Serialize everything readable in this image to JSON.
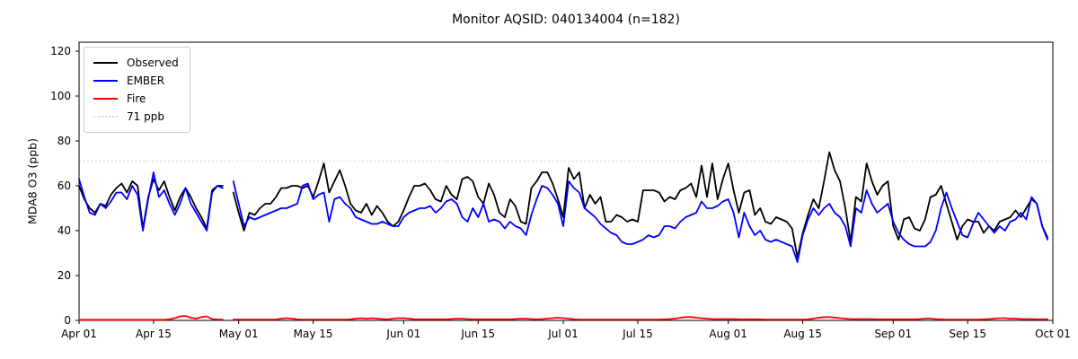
{
  "chart_data": {
    "type": "line",
    "title": "Monitor AQSID: 040134004 (n=182)",
    "xlabel": "",
    "ylabel": "MDA8 O3 (ppb)",
    "ylim": [
      0,
      124
    ],
    "yticks": [
      0,
      20,
      40,
      60,
      80,
      100,
      120
    ],
    "x_days_total": 183,
    "x_start_label": "Apr 01",
    "x_end_label": "Oct 01",
    "xticks": [
      {
        "day": 0,
        "label": "Apr 01"
      },
      {
        "day": 14,
        "label": "Apr 15"
      },
      {
        "day": 30,
        "label": "May 01"
      },
      {
        "day": 44,
        "label": "May 15"
      },
      {
        "day": 61,
        "label": "Jun 01"
      },
      {
        "day": 75,
        "label": "Jun 15"
      },
      {
        "day": 91,
        "label": "Jul 01"
      },
      {
        "day": 105,
        "label": "Jul 15"
      },
      {
        "day": 122,
        "label": "Aug 01"
      },
      {
        "day": 136,
        "label": "Aug 15"
      },
      {
        "day": 153,
        "label": "Sep 01"
      },
      {
        "day": 167,
        "label": "Sep 15"
      },
      {
        "day": 183,
        "label": "Oct 01"
      }
    ],
    "threshold": {
      "value": 71,
      "label": "71 ppb",
      "color": "#d8d8d8",
      "style": "dotted"
    },
    "legend_items": [
      {
        "label": "Observed",
        "color": "#000000",
        "style": "solid"
      },
      {
        "label": "EMBER",
        "color": "#0000ff",
        "style": "solid"
      },
      {
        "label": "Fire",
        "color": "#ff0000",
        "style": "solid"
      },
      {
        "label": "71 ppb",
        "color": "#d8d8d8",
        "style": "dotted"
      }
    ],
    "grid": false,
    "legend_position": "upper left",
    "note_gap": "no data on Apr 29",
    "series": [
      {
        "name": "Observed",
        "color": "#000000",
        "values": [
          60,
          54,
          50,
          48,
          52,
          51,
          56,
          59,
          61,
          57,
          62,
          60,
          41,
          55,
          63,
          58,
          62,
          55,
          49,
          55,
          59,
          55,
          50,
          46,
          41,
          58,
          60,
          60,
          null,
          57,
          48,
          40,
          48,
          47,
          50,
          52,
          52,
          55,
          59,
          59,
          60,
          60,
          59,
          60,
          55,
          62,
          70,
          57,
          62,
          67,
          60,
          52,
          49,
          48,
          52,
          47,
          51,
          48,
          44,
          42,
          44,
          49,
          55,
          60,
          60,
          61,
          58,
          54,
          53,
          60,
          56,
          54,
          63,
          64,
          62,
          55,
          52,
          61,
          56,
          48,
          46,
          54,
          51,
          44,
          43,
          59,
          62,
          66,
          66,
          61,
          54,
          46,
          68,
          63,
          66,
          50,
          56,
          52,
          55,
          44,
          44,
          47,
          46,
          44,
          45,
          44,
          58,
          58,
          58,
          57,
          53,
          55,
          54,
          58,
          59,
          61,
          55,
          69,
          55,
          70,
          54,
          63,
          70,
          58,
          48,
          57,
          58,
          47,
          50,
          44,
          43,
          46,
          45,
          44,
          41,
          28,
          39,
          47,
          54,
          50,
          62,
          75,
          67,
          62,
          50,
          35,
          55,
          53,
          70,
          62,
          56,
          60,
          62,
          42,
          36,
          45,
          46,
          41,
          40,
          45,
          55,
          56,
          60,
          52,
          44,
          36,
          42,
          45,
          44,
          44,
          39,
          42,
          40,
          44,
          45,
          46,
          49,
          46,
          50,
          54,
          52,
          42,
          37
        ]
      },
      {
        "name": "EMBER",
        "color": "#0000ff",
        "values": [
          63,
          55,
          48,
          47,
          52,
          50,
          53,
          57,
          57,
          54,
          60,
          56,
          40,
          54,
          66,
          55,
          58,
          52,
          47,
          52,
          59,
          52,
          48,
          44,
          40,
          57,
          60,
          59,
          null,
          62,
          52,
          42,
          46,
          45,
          46,
          47,
          48,
          49,
          50,
          50,
          51,
          52,
          60,
          61,
          54,
          56,
          57,
          44,
          54,
          55,
          52,
          50,
          46,
          45,
          44,
          43,
          43,
          44,
          43,
          42,
          42,
          46,
          48,
          49,
          50,
          50,
          51,
          48,
          50,
          53,
          54,
          52,
          46,
          44,
          50,
          46,
          52,
          44,
          45,
          44,
          41,
          44,
          42,
          41,
          38,
          47,
          54,
          60,
          59,
          56,
          52,
          42,
          62,
          59,
          57,
          50,
          48,
          46,
          43,
          41,
          39,
          38,
          35,
          34,
          34,
          35,
          36,
          38,
          37,
          38,
          42,
          42,
          41,
          44,
          46,
          47,
          48,
          53,
          50,
          50,
          51,
          53,
          54,
          48,
          37,
          48,
          42,
          38,
          40,
          36,
          35,
          36,
          35,
          34,
          33,
          26,
          38,
          45,
          50,
          47,
          50,
          52,
          48,
          46,
          42,
          33,
          50,
          48,
          58,
          52,
          48,
          50,
          52,
          44,
          39,
          36,
          34,
          33,
          33,
          33,
          35,
          40,
          50,
          57,
          50,
          44,
          38,
          37,
          43,
          48,
          45,
          42,
          39,
          42,
          40,
          44,
          45,
          48,
          45,
          55,
          52,
          42,
          36
        ]
      },
      {
        "name": "Fire",
        "color": "#ff0000",
        "values": [
          0.3,
          0.3,
          0.3,
          0.3,
          0.3,
          0.3,
          0.3,
          0.3,
          0.3,
          0.3,
          0.3,
          0.3,
          0.3,
          0.3,
          0.3,
          0.3,
          0.3,
          0.5,
          1,
          1.8,
          2,
          1.2,
          0.8,
          1.5,
          1.8,
          0.6,
          0.4,
          0.4,
          null,
          0.4,
          0.4,
          0.4,
          0.4,
          0.4,
          0.4,
          0.4,
          0.4,
          0.4,
          0.8,
          1,
          0.8,
          0.5,
          0.4,
          0.4,
          0.4,
          0.4,
          0.4,
          0.4,
          0.4,
          0.4,
          0.4,
          0.5,
          0.8,
          1,
          0.8,
          1,
          0.8,
          0.6,
          0.5,
          0.8,
          1,
          1,
          0.8,
          0.5,
          0.5,
          0.5,
          0.5,
          0.5,
          0.5,
          0.5,
          0.6,
          0.8,
          0.8,
          0.6,
          0.5,
          0.5,
          0.5,
          0.5,
          0.5,
          0.5,
          0.5,
          0.5,
          0.6,
          0.8,
          0.8,
          0.6,
          0.5,
          0.6,
          0.8,
          1,
          1.2,
          1,
          0.8,
          0.5,
          0.4,
          0.4,
          0.4,
          0.4,
          0.4,
          0.4,
          0.4,
          0.4,
          0.4,
          0.4,
          0.4,
          0.4,
          0.4,
          0.4,
          0.4,
          0.4,
          0.5,
          0.6,
          0.8,
          1.2,
          1.5,
          1.5,
          1.2,
          1,
          0.8,
          0.6,
          0.6,
          0.6,
          0.6,
          0.6,
          0.5,
          0.5,
          0.5,
          0.5,
          0.5,
          0.4,
          0.4,
          0.4,
          0.4,
          0.4,
          0.4,
          0.4,
          0.4,
          0.5,
          0.8,
          1.2,
          1.5,
          1.5,
          1.3,
          1,
          0.8,
          0.6,
          0.6,
          0.6,
          0.6,
          0.6,
          0.5,
          0.5,
          0.5,
          0.5,
          0.5,
          0.5,
          0.5,
          0.5,
          0.6,
          0.8,
          0.8,
          0.6,
          0.5,
          0.4,
          0.4,
          0.4,
          0.4,
          0.4,
          0.4,
          0.4,
          0.5,
          0.6,
          0.8,
          1,
          1,
          0.8,
          0.8,
          0.6,
          0.6,
          0.6,
          0.5,
          0.5,
          0.5
        ]
      }
    ]
  }
}
